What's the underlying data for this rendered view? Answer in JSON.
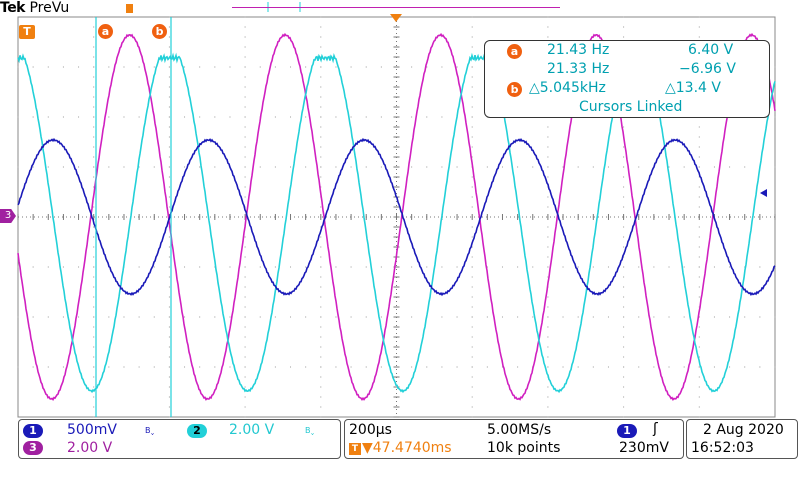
{
  "header": {
    "brand": "Tek",
    "mode": "PreVu"
  },
  "colors": {
    "ch1": "#1a1ab8",
    "ch2": "#22d0d8",
    "ch3": "#d020c0",
    "cursor_badge": "#f06010",
    "readout_text": "#00a8b8",
    "grid": "#808080"
  },
  "cursors": {
    "a_label": "a",
    "b_label": "b",
    "trigger_marker": "T"
  },
  "readout": {
    "a_freq": "21.43 Hz",
    "a_volt": "6.40 V",
    "b_freq": "21.33 Hz",
    "b_volt": "−6.96 V",
    "delta_freq": "△5.045kHz",
    "delta_volt": "△13.4 V",
    "linked": "Cursors Linked"
  },
  "channels": {
    "ch1": {
      "num": "1",
      "scale": "500mV",
      "bw": "Bˬ"
    },
    "ch2": {
      "num": "2",
      "scale": "2.00 V",
      "bw": "Bˬ"
    },
    "ch3": {
      "num": "3",
      "scale": "2.00 V"
    }
  },
  "horizontal": {
    "timebase": "200µs",
    "sample_rate": "5.00MS/s",
    "trigger_pos": "▼47.4740ms",
    "record_length": "10k points"
  },
  "trigger": {
    "source": "1",
    "slope": "ʃ",
    "level": "230mV"
  },
  "datetime": {
    "date": "2 Aug 2020",
    "time": "16:52:03"
  },
  "marker": {
    "ch3": "3"
  }
}
